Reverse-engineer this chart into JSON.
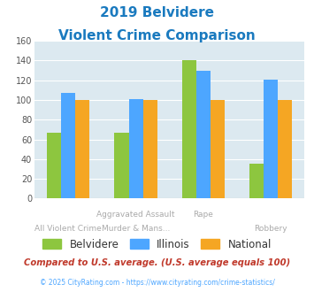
{
  "title_line1": "2019 Belvidere",
  "title_line2": "Violent Crime Comparison",
  "title_color": "#1a7abf",
  "series": {
    "Belvidere": [
      67,
      67,
      140,
      35
    ],
    "Illinois": [
      107,
      101,
      130,
      121
    ],
    "National": [
      100,
      100,
      100,
      100
    ]
  },
  "colors": {
    "Belvidere": "#8dc63f",
    "Illinois": "#4da6ff",
    "National": "#f5a623"
  },
  "ylim": [
    0,
    160
  ],
  "yticks": [
    0,
    20,
    40,
    60,
    80,
    100,
    120,
    140,
    160
  ],
  "plot_bg": "#dce9f0",
  "top_labels": [
    "",
    "Aggravated Assault",
    "Rape",
    ""
  ],
  "bot_labels": [
    "All Violent Crime",
    "Murder & Mans...",
    "",
    "Robbery"
  ],
  "footnote1": "Compared to U.S. average. (U.S. average equals 100)",
  "footnote2": "© 2025 CityRating.com - https://www.cityrating.com/crime-statistics/",
  "footnote1_color": "#c0392b",
  "footnote2_color": "#4da6ff",
  "legend_label_color": "#333333"
}
